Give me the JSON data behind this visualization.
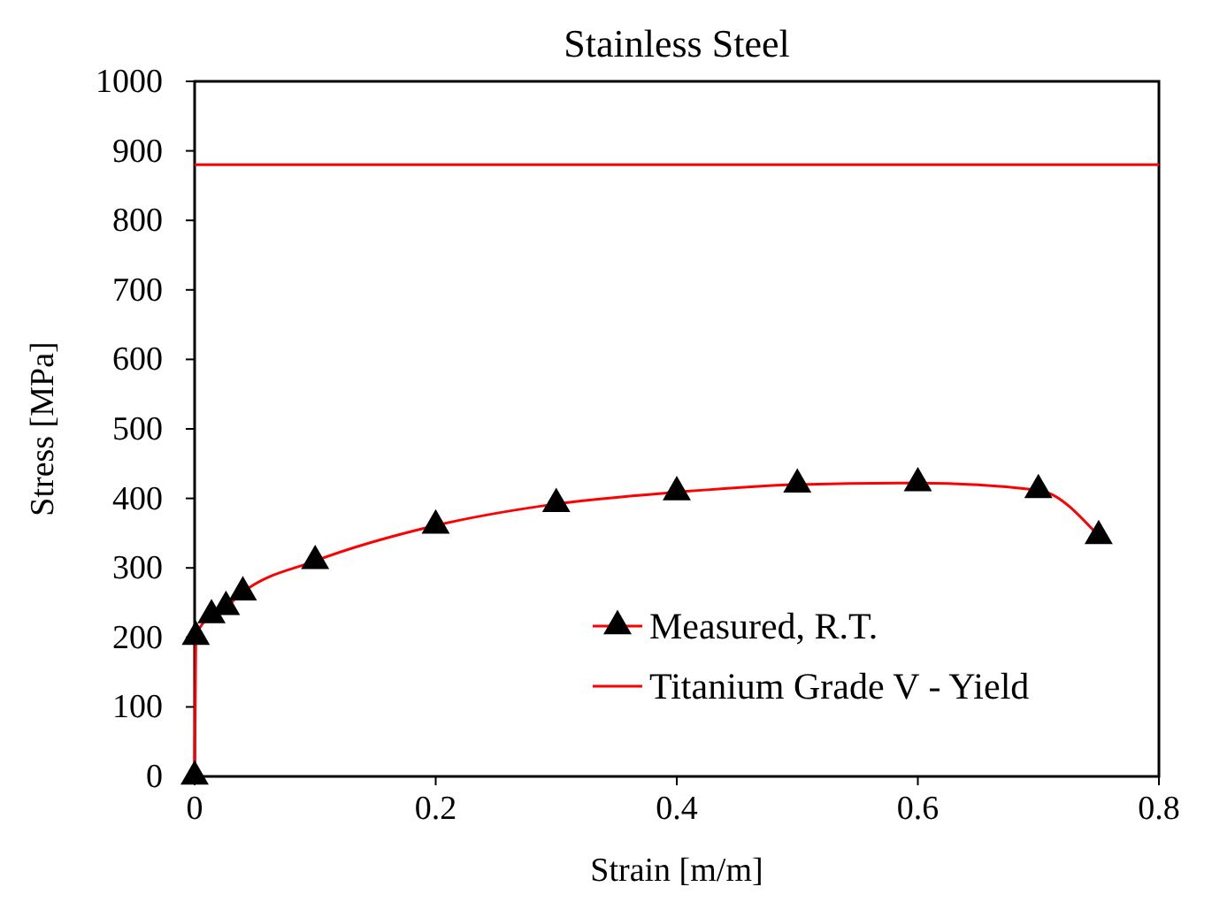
{
  "chart_data": {
    "type": "line",
    "title": "Stainless Steel",
    "xlabel": "Strain [m/m]",
    "ylabel": "Stress [MPa]",
    "xlim": [
      0,
      0.8
    ],
    "xticks": [
      0,
      0.2,
      0.4,
      0.6,
      0.8
    ],
    "ylim": [
      0,
      1000
    ],
    "yticks": [
      0,
      100,
      200,
      300,
      400,
      500,
      600,
      700,
      800,
      900,
      1000
    ],
    "grid": false,
    "legend": "bottom right",
    "series": [
      {
        "name": "Measured, R.T.",
        "color": "#ff0000",
        "marker": "triangle",
        "x": [
          0,
          0.001,
          0.014,
          0.026,
          0.04,
          0.1,
          0.2,
          0.3,
          0.4,
          0.5,
          0.6,
          0.7,
          0.75
        ],
        "values": [
          0,
          201,
          232,
          244,
          265,
          310,
          361,
          392,
          409,
          420,
          422,
          412,
          346
        ]
      },
      {
        "name": "Titanium Grade V - Yield",
        "color": "#ff0000",
        "marker": "none",
        "x": [
          0,
          0.8
        ],
        "values": [
          880,
          880
        ]
      }
    ]
  }
}
